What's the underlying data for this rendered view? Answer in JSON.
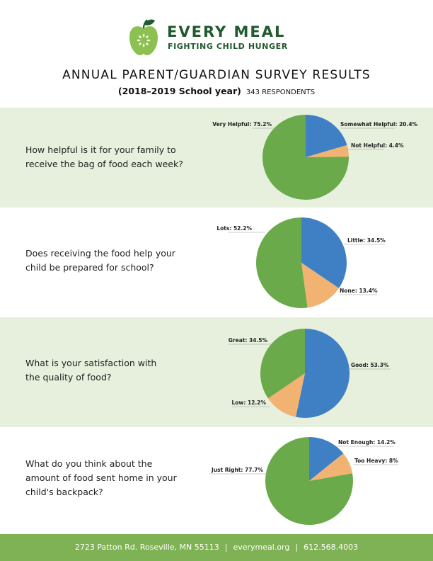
{
  "brand": {
    "name": "EVERY MEAL",
    "tagline": "FIGHTING CHILD HUNGER",
    "colors": {
      "dark_green": "#215a2e",
      "apple_green": "#8cc152"
    }
  },
  "header": {
    "title": "ANNUAL PARENT/GUARDIAN SURVEY RESULTS",
    "school_year": "(2018–2019 School year)",
    "respondents": "343 RESPONDENTS"
  },
  "chart_data": [
    {
      "type": "pie",
      "title": "How helpful is it for your family to receive the bag of food each week?",
      "question_lines": [
        "How helpful is it for your family to",
        "receive the bag of food each week?"
      ],
      "slices": [
        {
          "label": "Somewhat Helpful: 20.4%",
          "value": 20.4,
          "color": "#3f80c5"
        },
        {
          "label": "Not Helpful: 4.4%",
          "value": 4.4,
          "color": "#f2b271"
        },
        {
          "label": "Very Helpful: 75.2%",
          "value": 75.2,
          "color": "#6aaa4b"
        }
      ],
      "grid": false,
      "legend": "none"
    },
    {
      "type": "pie",
      "title": "Does receiving the food help your child be prepared for school?",
      "question_lines": [
        "Does receiving the food help your",
        "child be prepared for school?"
      ],
      "slices": [
        {
          "label": "Little: 34.5%",
          "value": 34.5,
          "color": "#3f80c5"
        },
        {
          "label": "None: 13.4%",
          "value": 13.4,
          "color": "#f2b271"
        },
        {
          "label": "Lots: 52.2%",
          "value": 52.2,
          "color": "#6aaa4b"
        }
      ],
      "grid": false,
      "legend": "none"
    },
    {
      "type": "pie",
      "title": "What is your satisfaction with the quality of food?",
      "question_lines": [
        "What is your satisfaction with",
        "the quality of food?"
      ],
      "slices": [
        {
          "label": "Good: 53.3%",
          "value": 53.3,
          "color": "#3f80c5"
        },
        {
          "label": "Low: 12.2%",
          "value": 12.2,
          "color": "#f2b271"
        },
        {
          "label": "Great: 34.5%",
          "value": 34.5,
          "color": "#6aaa4b"
        }
      ],
      "grid": false,
      "legend": "none"
    },
    {
      "type": "pie",
      "title": "What do you think about the amount of food sent home in your child's backpack?",
      "question_lines": [
        "What do you think about the",
        "amount of food sent home in your",
        "child's backpack?"
      ],
      "slices": [
        {
          "label": "Not Enough: 14.2%",
          "value": 14.2,
          "color": "#3f80c5"
        },
        {
          "label": "Too Heavy: 8%",
          "value": 8,
          "color": "#f2b271"
        },
        {
          "label": "Just Right: 77.7%",
          "value": 77.7,
          "color": "#6aaa4b"
        }
      ],
      "grid": false,
      "legend": "none"
    }
  ],
  "footer": {
    "address": "2723 Patton Rd. Roseville, MN 55113",
    "website": "everymeal.org",
    "phone": "612.568.4003"
  }
}
